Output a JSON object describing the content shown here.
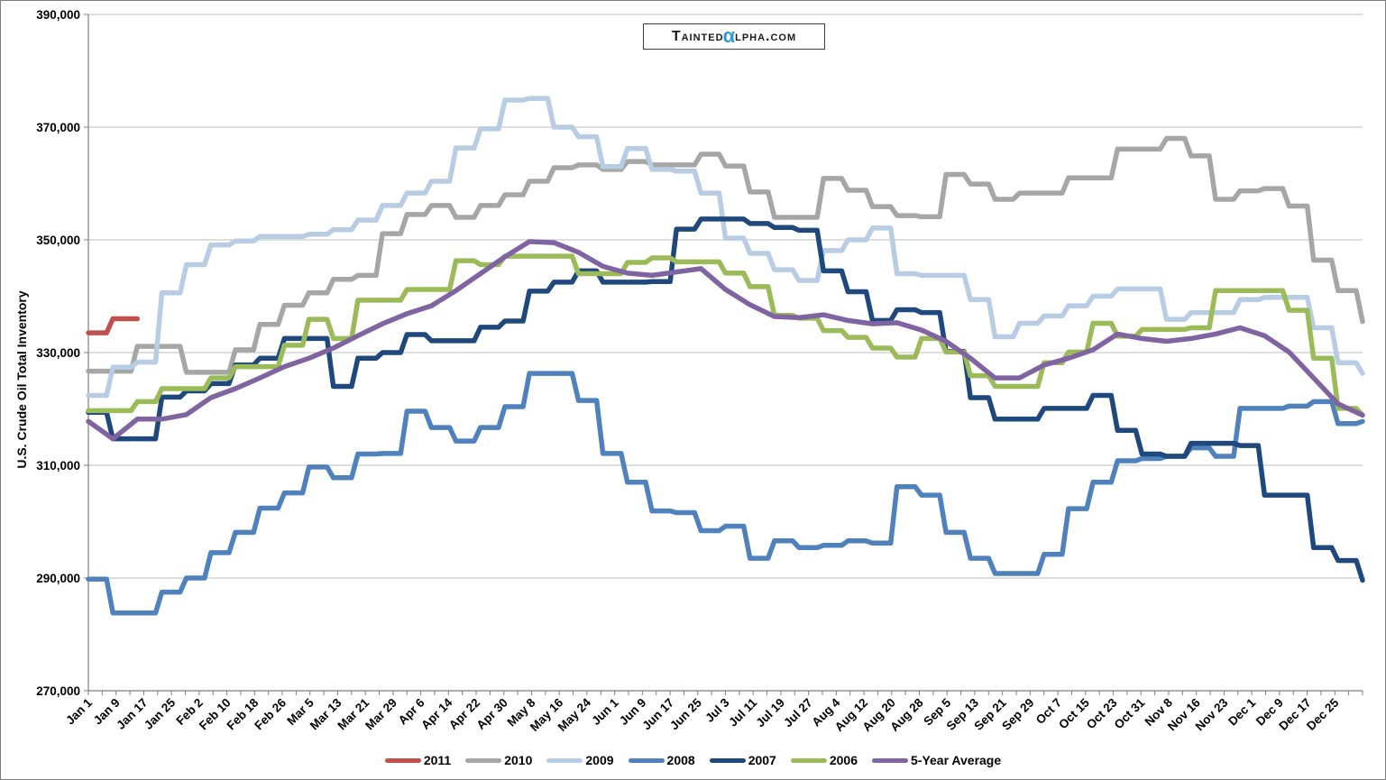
{
  "branding": {
    "logo_text_pre": "Tainted",
    "logo_alpha": "α",
    "logo_text_post": "lpha.com",
    "logo_alpha_color": "#2E9BD6"
  },
  "chart_data": {
    "type": "line",
    "title": "",
    "ylabel": "U.S. Crude Oil Total Inventory",
    "xlabel": "",
    "ylim": [
      270000,
      390000
    ],
    "ytick_step": 20000,
    "y_tick_labels": [
      "270,000",
      "290,000",
      "310,000",
      "330,000",
      "350,000",
      "370,000",
      "390,000"
    ],
    "grid": "horizontal",
    "legend_position": "bottom",
    "x_weeks": 53,
    "x_labels": [
      "Jan 1",
      "Jan 9",
      "Jan 17",
      "Jan 25",
      "Feb 2",
      "Feb 10",
      "Feb 18",
      "Feb 26",
      "Mar 5",
      "Mar 13",
      "Mar 21",
      "Mar 29",
      "Apr 6",
      "Apr 14",
      "Apr 22",
      "Apr 30",
      "May 8",
      "May 16",
      "May 24",
      "Jun 1",
      "Jun 9",
      "Jun 17",
      "Jun 25",
      "Jul 3",
      "Jul 11",
      "Jul 19",
      "Jul 27",
      "Aug 4",
      "Aug 12",
      "Aug 20",
      "Aug 28",
      "Sep 5",
      "Sep 13",
      "Sep 21",
      "Sep 29",
      "Oct 7",
      "Oct 15",
      "Oct 23",
      "Oct 31",
      "Nov 8",
      "Nov 16",
      "Nov 23",
      "Dec 1",
      "Dec 9",
      "Dec 17",
      "Dec 25"
    ],
    "series": [
      {
        "name": "2011",
        "color": "#C0504D",
        "style": "step",
        "values": [
          333500,
          336000,
          336000
        ]
      },
      {
        "name": "2010",
        "color": "#A6A6A6",
        "style": "step",
        "values": [
          326700,
          326700,
          331100,
          331100,
          326500,
          326500,
          330500,
          335000,
          338400,
          340600,
          343000,
          343700,
          351100,
          354500,
          356100,
          354000,
          356100,
          358000,
          360400,
          362800,
          363300,
          362500,
          363900,
          363300,
          363300,
          365200,
          363100,
          358500,
          354000,
          354000,
          360900,
          358800,
          355900,
          354300,
          354100,
          361600,
          359900,
          357200,
          358300,
          358300,
          361000,
          361000,
          366100,
          366100,
          368000,
          364900,
          357200,
          358700,
          359100,
          356000,
          346400,
          341000,
          335500
        ]
      },
      {
        "name": "2009",
        "color": "#B8CCE4",
        "style": "step",
        "values": [
          322400,
          327400,
          328300,
          340600,
          345600,
          349100,
          349800,
          350600,
          350600,
          351000,
          351800,
          353500,
          356100,
          358300,
          360400,
          366300,
          369700,
          374800,
          375100,
          370000,
          368300,
          363000,
          366200,
          362500,
          362200,
          358300,
          350300,
          347600,
          344700,
          342800,
          348100,
          350000,
          352100,
          344000,
          343700,
          343700,
          339400,
          332800,
          335200,
          336500,
          338300,
          340000,
          341300,
          341300,
          335900,
          337100,
          337100,
          339400,
          339800,
          339800,
          334400,
          328200,
          326300
        ]
      },
      {
        "name": "2008",
        "color": "#4F81BD",
        "style": "step",
        "values": [
          289800,
          283800,
          283800,
          287500,
          290000,
          294500,
          298100,
          302400,
          305100,
          309700,
          307800,
          312000,
          312100,
          319600,
          316700,
          314300,
          316700,
          320400,
          326300,
          326300,
          321500,
          312100,
          307000,
          301900,
          301600,
          298400,
          299200,
          293500,
          296600,
          295400,
          295800,
          296600,
          296200,
          306200,
          304700,
          298100,
          293500,
          290800,
          290800,
          294200,
          302300,
          307000,
          310800,
          311200,
          311600,
          313100,
          311600,
          320100,
          320100,
          320500,
          321300,
          317400,
          317800
        ]
      },
      {
        "name": "2007",
        "color": "#1F497D",
        "style": "step",
        "values": [
          319400,
          314700,
          314700,
          322100,
          323200,
          324500,
          327800,
          329000,
          332500,
          332500,
          324000,
          329000,
          330000,
          333200,
          332100,
          332100,
          334500,
          335600,
          340900,
          342500,
          344500,
          342500,
          342500,
          342600,
          351900,
          353700,
          353700,
          352900,
          352200,
          351700,
          344500,
          340800,
          335700,
          337600,
          337100,
          330200,
          322000,
          318200,
          318200,
          320100,
          320100,
          322400,
          316200,
          312000,
          311600,
          313900,
          313900,
          313500,
          304700,
          304700,
          295400,
          293100,
          289600
        ]
      },
      {
        "name": "2006",
        "color": "#9BBB59",
        "style": "step",
        "values": [
          319700,
          319700,
          321300,
          323600,
          323600,
          325500,
          327500,
          327500,
          331300,
          335900,
          332500,
          339300,
          339300,
          341200,
          341200,
          346300,
          345600,
          347100,
          347100,
          347100,
          344000,
          344000,
          346000,
          346800,
          346100,
          346100,
          344100,
          341700,
          336600,
          336100,
          333900,
          332700,
          330800,
          329200,
          332500,
          330100,
          325900,
          324000,
          324000,
          328200,
          330100,
          335200,
          332900,
          334100,
          334100,
          334400,
          341000,
          341000,
          341000,
          337500,
          329000,
          320100,
          318900
        ]
      },
      {
        "name": "5-Year Average",
        "color": "#8064A2",
        "style": "smooth",
        "values": [
          317800,
          314700,
          318200,
          318200,
          319000,
          322000,
          323600,
          325500,
          327500,
          329000,
          330800,
          333000,
          335100,
          336900,
          338300,
          341000,
          344000,
          347000,
          349700,
          349500,
          347800,
          345300,
          344100,
          343700,
          344300,
          344900,
          341200,
          338500,
          336400,
          336200,
          336700,
          335700,
          335100,
          335300,
          334000,
          332000,
          329000,
          325500,
          325500,
          327800,
          329000,
          330500,
          333300,
          332500,
          332000,
          332500,
          333300,
          334400,
          333000,
          330100,
          325500,
          320900,
          318900
        ]
      }
    ]
  }
}
